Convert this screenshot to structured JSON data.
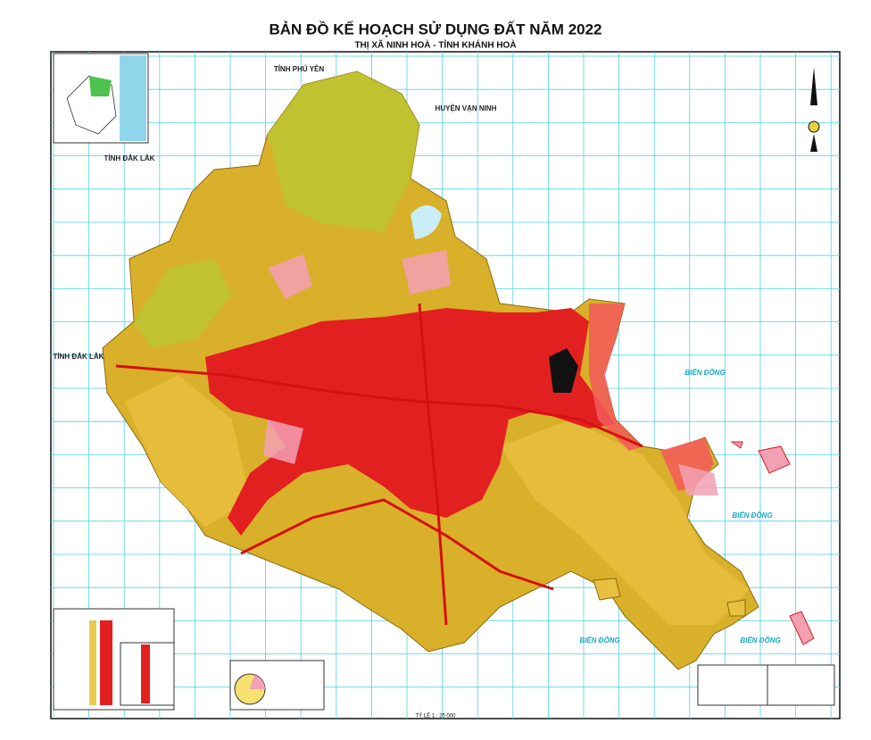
{
  "title": "BẢN ĐỒ KẾ HOẠCH SỬ DỤNG ĐẤT NĂM 2022",
  "subtitle": "THỊ XÃ NINH HOÀ - TỈNH KHÁNH HOÀ",
  "labels": {
    "neighbors": [
      "TỈNH PHÚ YÊN",
      "HUYỆN VẠN NINH",
      "TỈNH ĐẮK LẮK",
      "TỈNH ĐẮK LẮK"
    ],
    "sea": [
      "BIỂN ĐÔNG",
      "BIỂN ĐÔNG",
      "BIỂN ĐÔNG",
      "BIỂN ĐÔNG"
    ]
  },
  "scale": "TỶ LỆ 1 : 25 000"
}
